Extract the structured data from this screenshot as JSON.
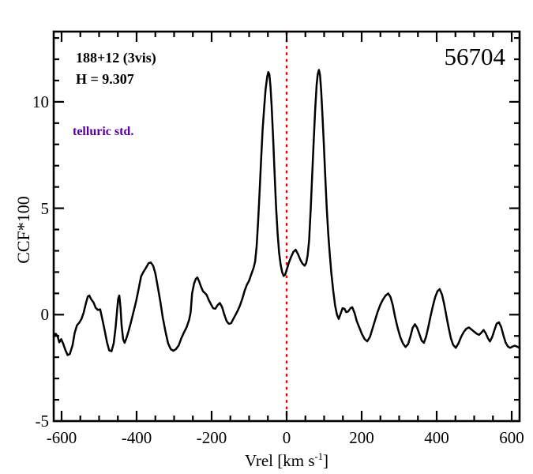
{
  "annotations": {
    "field_label": "188+12 (3vis)",
    "h_mag": "H = 9.307",
    "note": "telluric std.",
    "note_color": "#550099",
    "epoch": "56704"
  },
  "chart_data": {
    "type": "line",
    "title": "",
    "xlabel_parts": {
      "pre": "Vrel [km s",
      "sup": "-1",
      "post": "]"
    },
    "ylabel": "CCF*100",
    "xlim": [
      -621,
      621
    ],
    "ylim": [
      -5,
      13.3
    ],
    "grid": false,
    "x_tick_values": [
      -600,
      -400,
      -200,
      0,
      200,
      400,
      600
    ],
    "x_tick_labels": [
      "-600",
      "-400",
      "-200",
      "0",
      "200",
      "400",
      "600"
    ],
    "x_minor_step": 50,
    "y_tick_values": [
      -5,
      0,
      5,
      10
    ],
    "y_tick_labels": [
      "-5",
      "0",
      "5",
      "10"
    ],
    "y_minor_step": 1,
    "frame_color": "#000000",
    "reference_line": {
      "x": 0,
      "color": "#ee0000",
      "style": "dotted"
    },
    "series": [
      {
        "name": "ccf-curve",
        "color": "#000000",
        "points": [
          [
            -621,
            -1.05
          ],
          [
            -616,
            -0.9
          ],
          [
            -611,
            -1.0
          ],
          [
            -606,
            -1.3
          ],
          [
            -601,
            -1.15
          ],
          [
            -596,
            -1.35
          ],
          [
            -590,
            -1.65
          ],
          [
            -584,
            -1.9
          ],
          [
            -578,
            -1.85
          ],
          [
            -571,
            -1.45
          ],
          [
            -565,
            -0.85
          ],
          [
            -559,
            -0.5
          ],
          [
            -553,
            -0.38
          ],
          [
            -547,
            -0.2
          ],
          [
            -541,
            0.1
          ],
          [
            -535,
            0.55
          ],
          [
            -530,
            0.85
          ],
          [
            -526,
            0.9
          ],
          [
            -521,
            0.72
          ],
          [
            -515,
            0.58
          ],
          [
            -509,
            0.32
          ],
          [
            -503,
            0.22
          ],
          [
            -497,
            0.25
          ],
          [
            -491,
            -0.25
          ],
          [
            -485,
            -0.75
          ],
          [
            -479,
            -1.3
          ],
          [
            -473,
            -1.68
          ],
          [
            -467,
            -1.72
          ],
          [
            -461,
            -1.35
          ],
          [
            -456,
            -0.6
          ],
          [
            -452,
            0.2
          ],
          [
            -449,
            0.75
          ],
          [
            -446,
            0.9
          ],
          [
            -443,
            0.35
          ],
          [
            -440,
            -0.5
          ],
          [
            -436,
            -1.15
          ],
          [
            -432,
            -1.32
          ],
          [
            -427,
            -1.1
          ],
          [
            -421,
            -0.75
          ],
          [
            -415,
            -0.35
          ],
          [
            -408,
            0.15
          ],
          [
            -401,
            0.65
          ],
          [
            -394,
            1.25
          ],
          [
            -388,
            1.8
          ],
          [
            -382,
            2.0
          ],
          [
            -375,
            2.2
          ],
          [
            -368,
            2.42
          ],
          [
            -362,
            2.45
          ],
          [
            -356,
            2.3
          ],
          [
            -350,
            1.95
          ],
          [
            -344,
            1.35
          ],
          [
            -337,
            0.65
          ],
          [
            -330,
            -0.15
          ],
          [
            -323,
            -0.8
          ],
          [
            -316,
            -1.35
          ],
          [
            -309,
            -1.62
          ],
          [
            -302,
            -1.7
          ],
          [
            -295,
            -1.62
          ],
          [
            -288,
            -1.45
          ],
          [
            -281,
            -1.12
          ],
          [
            -274,
            -0.85
          ],
          [
            -267,
            -0.6
          ],
          [
            -260,
            -0.25
          ],
          [
            -256,
            0.1
          ],
          [
            -252,
            1.0
          ],
          [
            -247,
            1.45
          ],
          [
            -242,
            1.68
          ],
          [
            -238,
            1.75
          ],
          [
            -233,
            1.55
          ],
          [
            -228,
            1.3
          ],
          [
            -223,
            1.1
          ],
          [
            -218,
            1.02
          ],
          [
            -213,
            0.92
          ],
          [
            -208,
            0.7
          ],
          [
            -202,
            0.5
          ],
          [
            -196,
            0.3
          ],
          [
            -190,
            0.28
          ],
          [
            -184,
            0.45
          ],
          [
            -178,
            0.55
          ],
          [
            -172,
            0.35
          ],
          [
            -166,
            0.0
          ],
          [
            -160,
            -0.3
          ],
          [
            -154,
            -0.43
          ],
          [
            -148,
            -0.4
          ],
          [
            -142,
            -0.2
          ],
          [
            -136,
            0.0
          ],
          [
            -130,
            0.2
          ],
          [
            -124,
            0.45
          ],
          [
            -118,
            0.75
          ],
          [
            -112,
            1.12
          ],
          [
            -106,
            1.4
          ],
          [
            -100,
            1.6
          ],
          [
            -94,
            1.9
          ],
          [
            -88,
            2.2
          ],
          [
            -84,
            2.5
          ],
          [
            -80,
            3.2
          ],
          [
            -76,
            4.4
          ],
          [
            -72,
            5.8
          ],
          [
            -68,
            7.3
          ],
          [
            -64,
            8.7
          ],
          [
            -60,
            9.7
          ],
          [
            -56,
            10.6
          ],
          [
            -52,
            11.15
          ],
          [
            -49,
            11.4
          ],
          [
            -46,
            11.3
          ],
          [
            -43,
            10.7
          ],
          [
            -40,
            9.8
          ],
          [
            -36,
            8.3
          ],
          [
            -32,
            6.6
          ],
          [
            -28,
            5.0
          ],
          [
            -24,
            3.8
          ],
          [
            -20,
            2.9
          ],
          [
            -16,
            2.35
          ],
          [
            -12,
            2.0
          ],
          [
            -8,
            1.82
          ],
          [
            -4,
            1.88
          ],
          [
            0,
            2.1
          ],
          [
            6,
            2.45
          ],
          [
            12,
            2.72
          ],
          [
            18,
            2.95
          ],
          [
            24,
            3.05
          ],
          [
            30,
            2.85
          ],
          [
            36,
            2.6
          ],
          [
            42,
            2.4
          ],
          [
            48,
            2.3
          ],
          [
            52,
            2.42
          ],
          [
            56,
            2.78
          ],
          [
            60,
            3.5
          ],
          [
            64,
            4.9
          ],
          [
            68,
            6.5
          ],
          [
            72,
            8.1
          ],
          [
            76,
            9.6
          ],
          [
            80,
            10.8
          ],
          [
            83,
            11.3
          ],
          [
            86,
            11.5
          ],
          [
            89,
            11.25
          ],
          [
            92,
            10.55
          ],
          [
            95,
            9.55
          ],
          [
            99,
            8.1
          ],
          [
            103,
            6.5
          ],
          [
            107,
            5.0
          ],
          [
            111,
            3.8
          ],
          [
            115,
            2.85
          ],
          [
            119,
            2.0
          ],
          [
            124,
            1.15
          ],
          [
            129,
            0.45
          ],
          [
            134,
            0.0
          ],
          [
            139,
            -0.2
          ],
          [
            144,
            0.05
          ],
          [
            149,
            0.3
          ],
          [
            154,
            0.28
          ],
          [
            159,
            0.12
          ],
          [
            164,
            0.15
          ],
          [
            170,
            0.3
          ],
          [
            175,
            0.35
          ],
          [
            181,
            0.08
          ],
          [
            187,
            -0.3
          ],
          [
            194,
            -0.62
          ],
          [
            201,
            -0.92
          ],
          [
            208,
            -1.15
          ],
          [
            215,
            -1.25
          ],
          [
            222,
            -1.05
          ],
          [
            229,
            -0.65
          ],
          [
            236,
            -0.25
          ],
          [
            243,
            0.15
          ],
          [
            250,
            0.48
          ],
          [
            257,
            0.72
          ],
          [
            264,
            0.9
          ],
          [
            271,
            1.0
          ],
          [
            277,
            0.82
          ],
          [
            283,
            0.45
          ],
          [
            289,
            -0.1
          ],
          [
            296,
            -0.62
          ],
          [
            303,
            -1.05
          ],
          [
            310,
            -1.35
          ],
          [
            317,
            -1.52
          ],
          [
            324,
            -1.38
          ],
          [
            330,
            -1.02
          ],
          [
            336,
            -0.62
          ],
          [
            342,
            -0.45
          ],
          [
            348,
            -0.62
          ],
          [
            354,
            -0.92
          ],
          [
            360,
            -1.22
          ],
          [
            366,
            -1.32
          ],
          [
            372,
            -1.02
          ],
          [
            378,
            -0.55
          ],
          [
            384,
            -0.05
          ],
          [
            390,
            0.42
          ],
          [
            396,
            0.82
          ],
          [
            402,
            1.1
          ],
          [
            408,
            1.2
          ],
          [
            414,
            0.95
          ],
          [
            420,
            0.5
          ],
          [
            426,
            -0.08
          ],
          [
            432,
            -0.62
          ],
          [
            438,
            -1.12
          ],
          [
            444,
            -1.42
          ],
          [
            451,
            -1.56
          ],
          [
            458,
            -1.35
          ],
          [
            465,
            -1.05
          ],
          [
            472,
            -0.82
          ],
          [
            479,
            -0.66
          ],
          [
            486,
            -0.6
          ],
          [
            493,
            -0.7
          ],
          [
            500,
            -0.8
          ],
          [
            507,
            -0.9
          ],
          [
            513,
            -0.95
          ],
          [
            519,
            -0.85
          ],
          [
            525,
            -0.72
          ],
          [
            531,
            -0.88
          ],
          [
            537,
            -1.12
          ],
          [
            542,
            -1.26
          ],
          [
            548,
            -1.05
          ],
          [
            554,
            -0.72
          ],
          [
            560,
            -0.42
          ],
          [
            566,
            -0.36
          ],
          [
            572,
            -0.58
          ],
          [
            578,
            -0.98
          ],
          [
            584,
            -1.32
          ],
          [
            590,
            -1.5
          ],
          [
            596,
            -1.56
          ],
          [
            602,
            -1.5
          ],
          [
            608,
            -1.46
          ],
          [
            614,
            -1.5
          ],
          [
            621,
            -1.56
          ]
        ]
      }
    ]
  }
}
